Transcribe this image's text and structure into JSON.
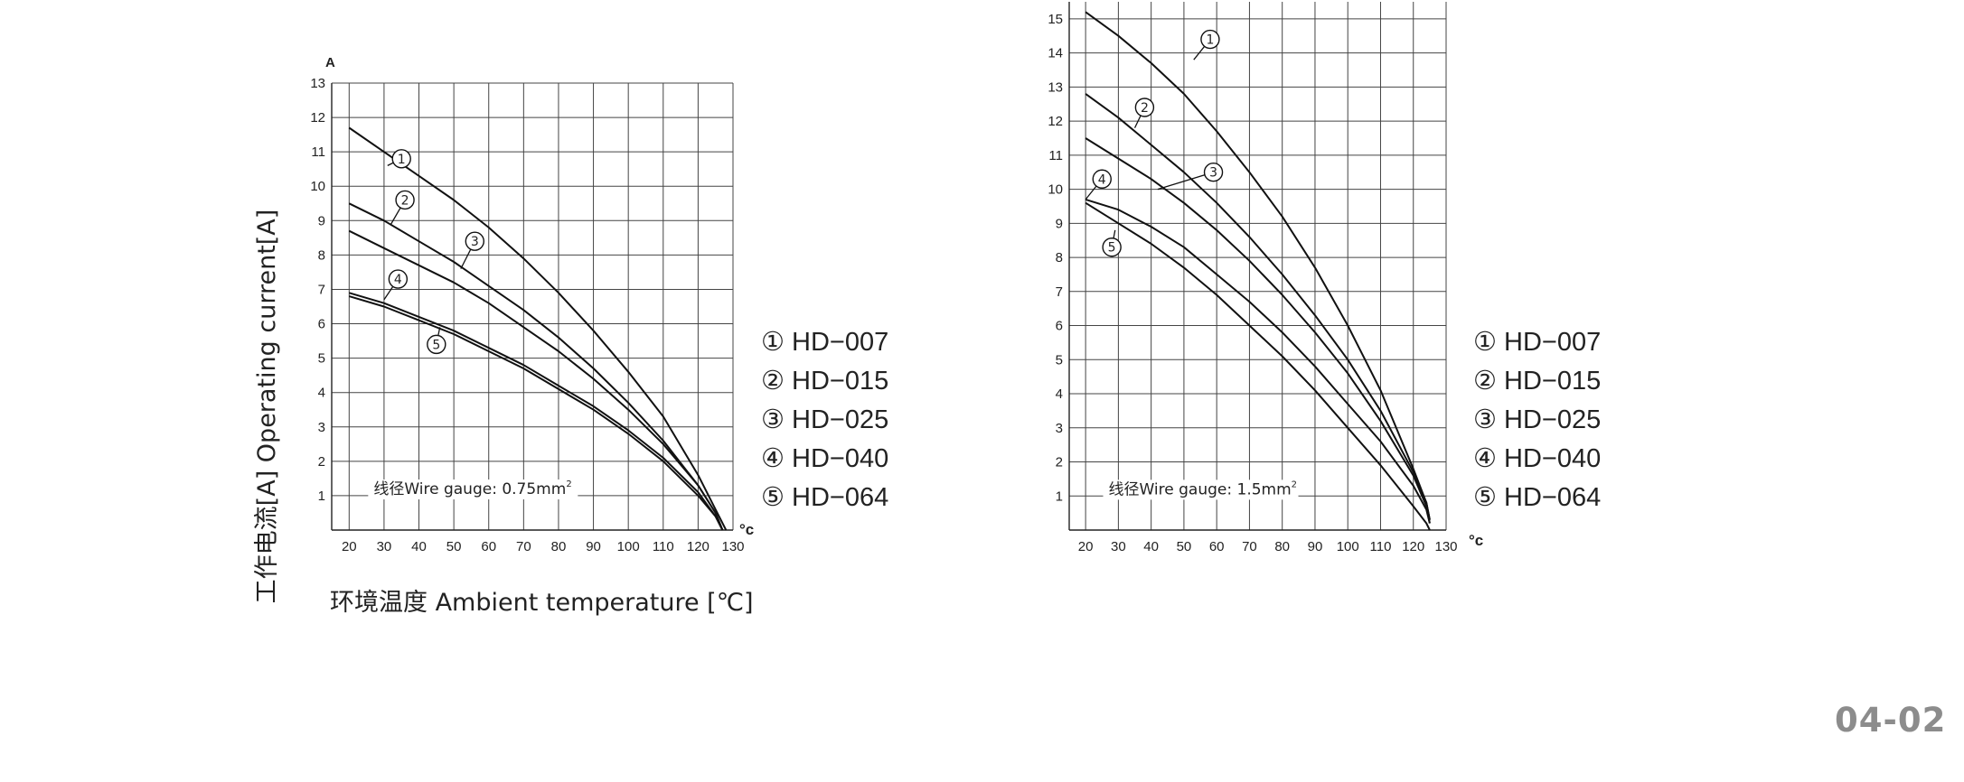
{
  "page_number": "04-02",
  "chart_data": [
    {
      "type": "line",
      "ylabel": "工作电流[A]  Operating current[A]",
      "xlabel": "环境温度 Ambient temperature [℃]",
      "y_unit": "A",
      "x_unit": "°c",
      "annotation": "线径Wire gauge: 0.75mm",
      "annotation_sup": "2",
      "xlim": [
        15,
        130
      ],
      "ylim": [
        0,
        13
      ],
      "x_ticks": [
        20,
        30,
        40,
        50,
        60,
        70,
        80,
        90,
        100,
        110,
        120,
        130
      ],
      "y_ticks": [
        1,
        2,
        3,
        4,
        5,
        6,
        7,
        8,
        9,
        10,
        11,
        12,
        13
      ],
      "grid": true,
      "legend_position": "right",
      "legend": [
        {
          "mark": "①",
          "label": "HD−007"
        },
        {
          "mark": "②",
          "label": "HD−015"
        },
        {
          "mark": "③",
          "label": "HD−025"
        },
        {
          "mark": "④",
          "label": "HD−040"
        },
        {
          "mark": "⑤",
          "label": "HD−064"
        }
      ],
      "series": [
        {
          "marker": "①",
          "label_at": [
            35,
            10.8
          ],
          "label_point": [
            31,
            10.6
          ],
          "x": [
            20,
            30,
            40,
            50,
            60,
            70,
            80,
            90,
            100,
            110,
            120,
            125,
            128
          ],
          "y": [
            11.7,
            11.0,
            10.3,
            9.6,
            8.8,
            7.9,
            6.9,
            5.8,
            4.6,
            3.3,
            1.6,
            0.6,
            0
          ]
        },
        {
          "marker": "②",
          "label_at": [
            36,
            9.6
          ],
          "label_point": [
            32,
            8.9
          ],
          "x": [
            20,
            30,
            40,
            50,
            60,
            70,
            80,
            90,
            100,
            110,
            120,
            125,
            127
          ],
          "y": [
            9.5,
            9.0,
            8.4,
            7.8,
            7.1,
            6.4,
            5.6,
            4.7,
            3.7,
            2.6,
            1.3,
            0.5,
            0
          ]
        },
        {
          "marker": "③",
          "label_at": [
            56,
            8.4
          ],
          "label_point": [
            52,
            7.6
          ],
          "x": [
            20,
            30,
            40,
            50,
            60,
            70,
            80,
            90,
            100,
            110,
            120,
            125,
            127
          ],
          "y": [
            8.7,
            8.2,
            7.7,
            7.2,
            6.6,
            5.9,
            5.2,
            4.4,
            3.5,
            2.5,
            1.3,
            0.5,
            0
          ]
        },
        {
          "marker": "④",
          "label_at": [
            34,
            7.3
          ],
          "label_point": [
            30,
            6.7
          ],
          "x": [
            20,
            30,
            40,
            50,
            60,
            70,
            80,
            90,
            100,
            110,
            120,
            125,
            127
          ],
          "y": [
            6.9,
            6.6,
            6.2,
            5.8,
            5.3,
            4.8,
            4.2,
            3.6,
            2.9,
            2.1,
            1.1,
            0.4,
            0
          ]
        },
        {
          "marker": "⑤",
          "label_at": [
            45,
            5.4
          ],
          "label_point": [
            46,
            5.9
          ],
          "x": [
            20,
            30,
            40,
            50,
            60,
            70,
            80,
            90,
            100,
            110,
            120,
            125,
            127
          ],
          "y": [
            6.8,
            6.5,
            6.1,
            5.7,
            5.2,
            4.7,
            4.1,
            3.5,
            2.8,
            2.0,
            1.0,
            0.4,
            0
          ]
        }
      ]
    },
    {
      "type": "line",
      "x_unit": "°c",
      "annotation": "线径Wire gauge: 1.5mm",
      "annotation_sup": "2",
      "xlim": [
        15,
        130
      ],
      "ylim": [
        0,
        15.5
      ],
      "x_ticks": [
        20,
        30,
        40,
        50,
        60,
        70,
        80,
        90,
        100,
        110,
        120,
        130
      ],
      "y_ticks": [
        1,
        2,
        3,
        4,
        5,
        6,
        7,
        8,
        9,
        10,
        11,
        12,
        13,
        14,
        15
      ],
      "grid": true,
      "legend_position": "right",
      "legend": [
        {
          "mark": "①",
          "label": "HD−007"
        },
        {
          "mark": "②",
          "label": "HD−015"
        },
        {
          "mark": "③",
          "label": "HD−025"
        },
        {
          "mark": "④",
          "label": "HD−040"
        },
        {
          "mark": "⑤",
          "label": "HD−064"
        }
      ],
      "series": [
        {
          "marker": "①",
          "label_at": [
            58,
            14.4
          ],
          "label_point": [
            53,
            13.8
          ],
          "x": [
            20,
            30,
            40,
            50,
            60,
            70,
            80,
            90,
            100,
            110,
            120,
            124,
            125
          ],
          "y": [
            15.2,
            14.5,
            13.7,
            12.8,
            11.7,
            10.5,
            9.2,
            7.7,
            6.0,
            4.1,
            1.8,
            0.8,
            0.3
          ]
        },
        {
          "marker": "②",
          "label_at": [
            38,
            12.4
          ],
          "label_point": [
            35,
            11.8
          ],
          "x": [
            20,
            30,
            40,
            50,
            60,
            70,
            80,
            90,
            100,
            110,
            120,
            124,
            125
          ],
          "y": [
            12.8,
            12.1,
            11.3,
            10.5,
            9.6,
            8.6,
            7.5,
            6.3,
            5.0,
            3.5,
            1.7,
            0.8,
            0.3
          ]
        },
        {
          "marker": "③",
          "label_at": [
            59,
            10.5
          ],
          "label_point": [
            42,
            10.0
          ],
          "x": [
            20,
            30,
            40,
            50,
            60,
            70,
            80,
            90,
            100,
            110,
            120,
            124,
            125
          ],
          "y": [
            11.5,
            10.9,
            10.3,
            9.6,
            8.8,
            7.9,
            6.9,
            5.8,
            4.6,
            3.2,
            1.6,
            0.7,
            0.2
          ]
        },
        {
          "marker": "④",
          "label_at": [
            25,
            10.3
          ],
          "label_point": [
            20,
            9.7
          ],
          "x": [
            20,
            30,
            40,
            50,
            60,
            70,
            80,
            90,
            100,
            110,
            120,
            124,
            125
          ],
          "y": [
            9.7,
            9.4,
            8.9,
            8.3,
            7.5,
            6.7,
            5.8,
            4.8,
            3.7,
            2.6,
            1.3,
            0.6,
            0.2
          ]
        },
        {
          "marker": "⑤",
          "label_at": [
            28,
            8.3
          ],
          "label_point": [
            29,
            8.8
          ],
          "x": [
            20,
            30,
            40,
            50,
            60,
            70,
            80,
            90,
            100,
            110,
            120,
            124,
            125
          ],
          "y": [
            9.6,
            9.0,
            8.4,
            7.7,
            6.9,
            6.0,
            5.1,
            4.1,
            3.0,
            1.9,
            0.7,
            0.2,
            0
          ]
        }
      ]
    }
  ]
}
